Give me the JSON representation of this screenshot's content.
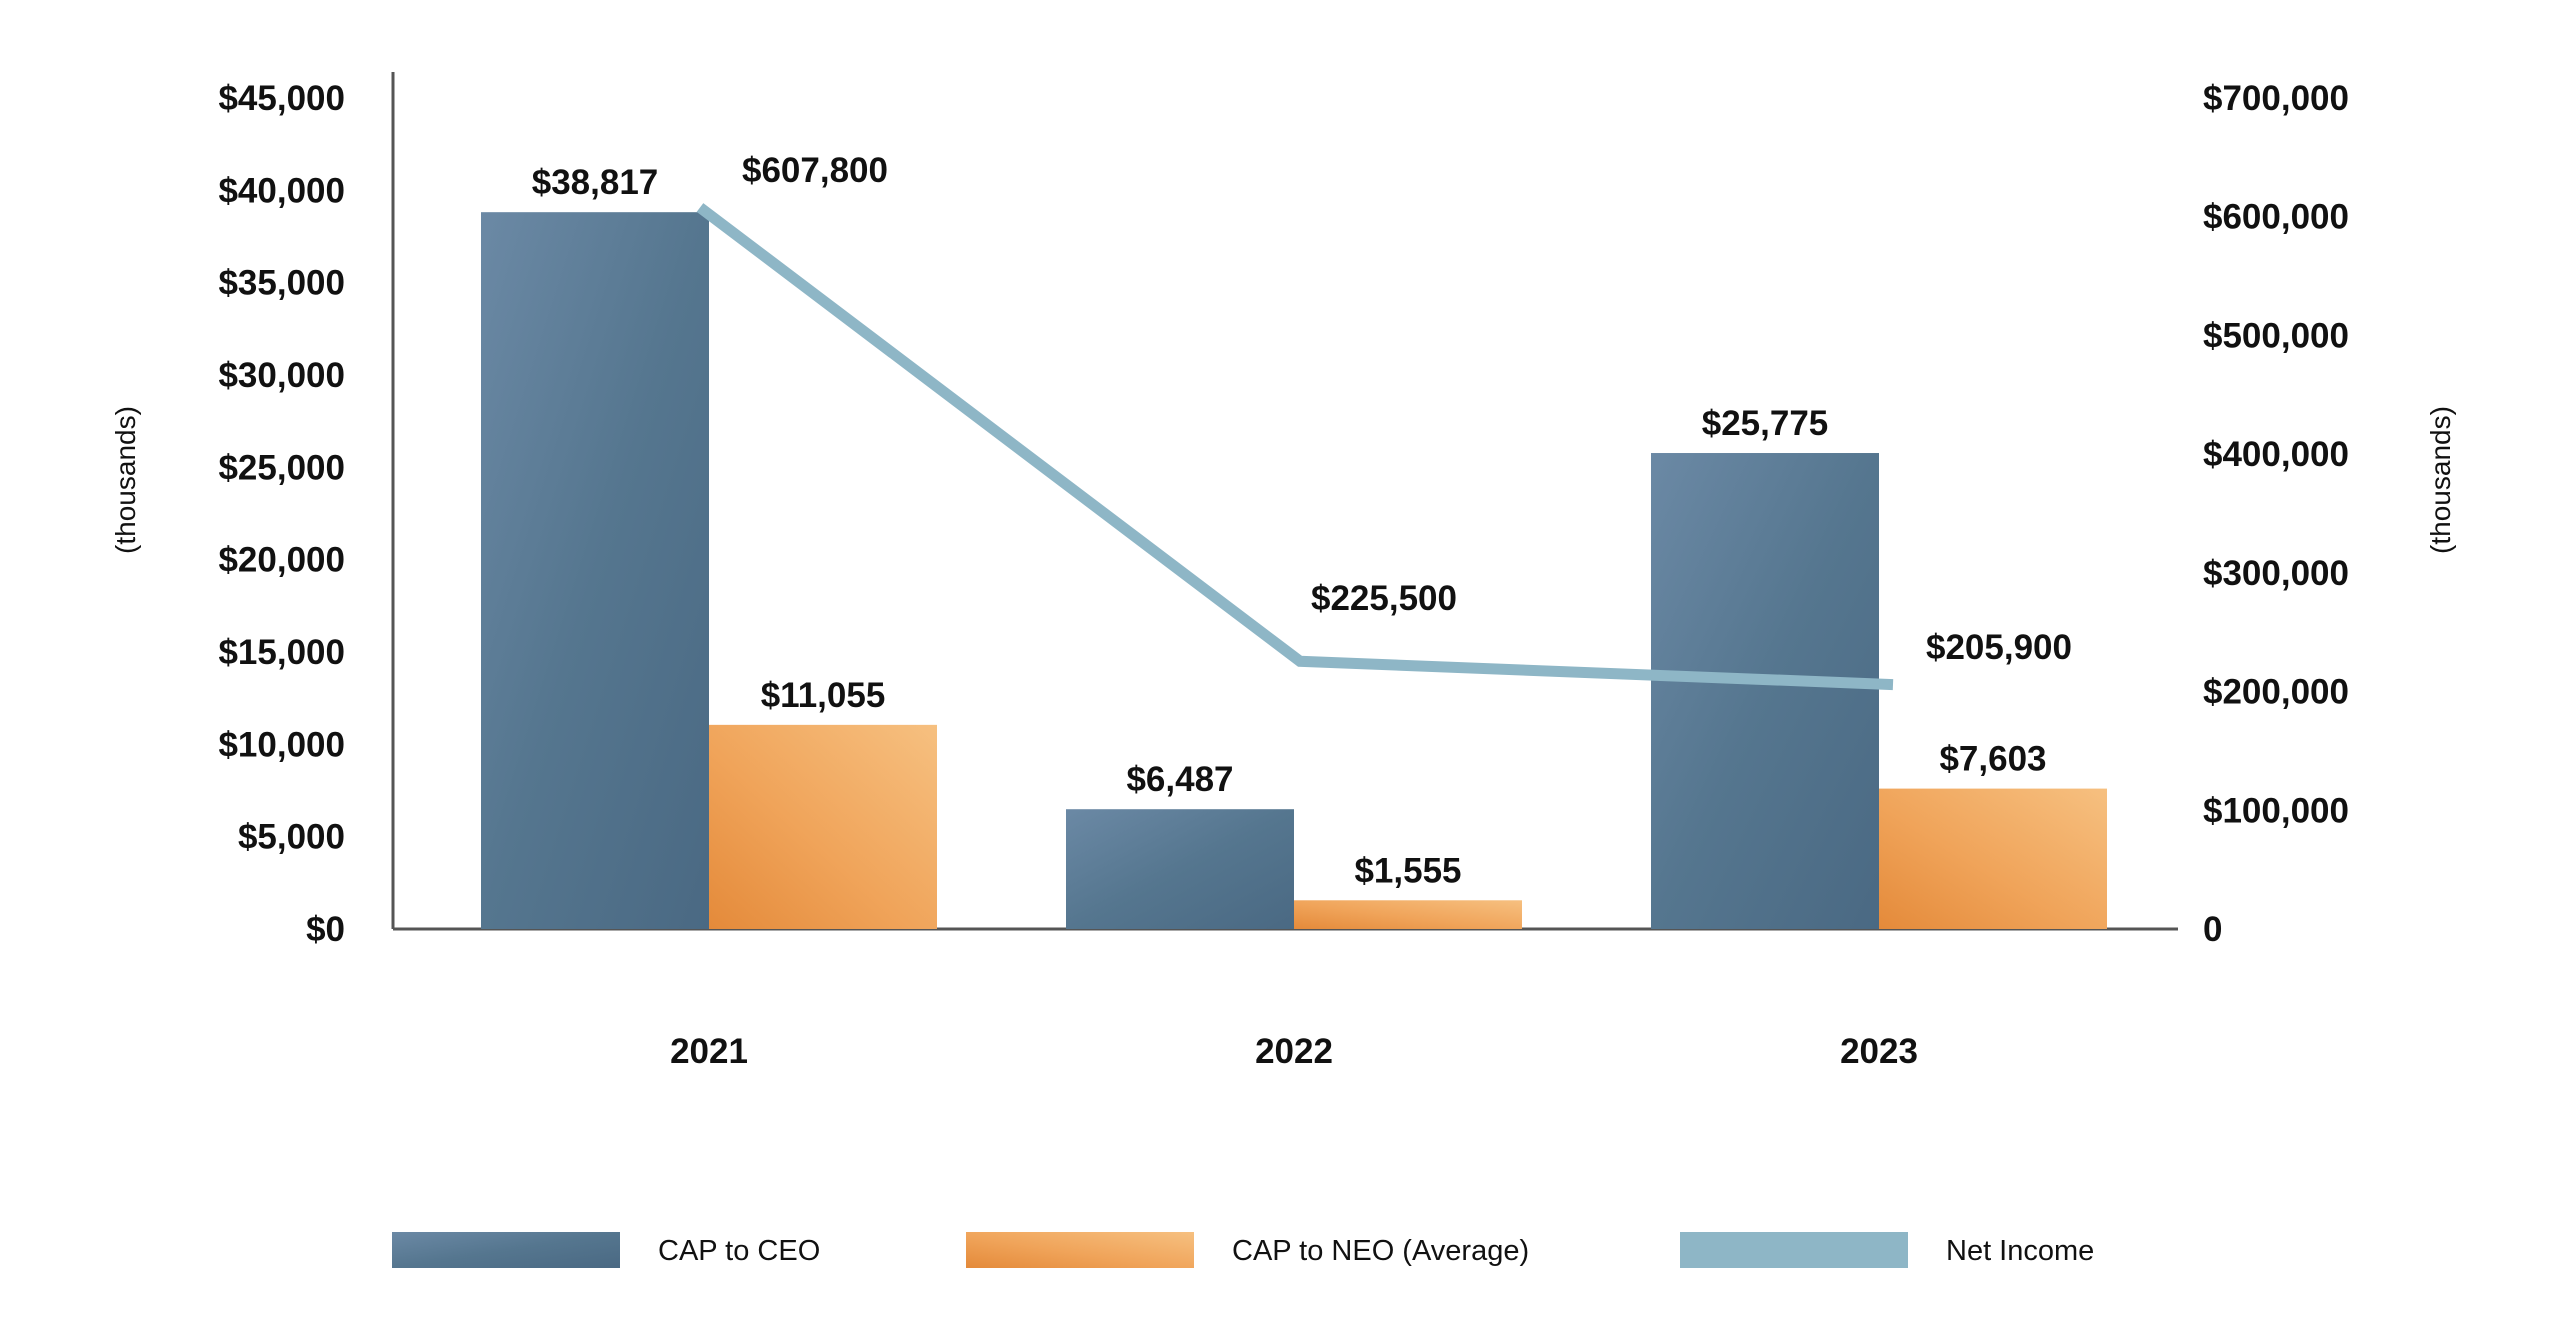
{
  "chart_data": {
    "type": "bar",
    "title": "",
    "categories": [
      "2021",
      "2022",
      "2023"
    ],
    "series": [
      {
        "name": "CAP to CEO",
        "kind": "bar",
        "axis": "left",
        "color": "#5d7f9d",
        "values": [
          38817,
          6487,
          25775
        ],
        "labels": [
          "$38,817",
          "$6,487",
          "$25,775"
        ]
      },
      {
        "name": "CAP to NEO (Average)",
        "kind": "bar",
        "axis": "left",
        "color": "#f0a55a",
        "values": [
          11055,
          1555,
          7603
        ],
        "labels": [
          "$11,055",
          "$1,555",
          "$7,603"
        ]
      },
      {
        "name": "Net Income",
        "kind": "line",
        "axis": "right",
        "color": "#8eb6c6",
        "values": [
          607800,
          225500,
          205900
        ],
        "labels": [
          "$607,800",
          "$225,500",
          "$205,900"
        ]
      }
    ],
    "left_axis": {
      "label": "(thousands)",
      "min": 0,
      "max": 45000,
      "ticks": [
        0,
        5000,
        10000,
        15000,
        20000,
        25000,
        30000,
        35000,
        40000,
        45000
      ],
      "tick_labels": [
        "$0",
        "$5,000",
        "$10,000",
        "$15,000",
        "$20,000",
        "$25,000",
        "$30,000",
        "$35,000",
        "$40,000",
        "$45,000"
      ]
    },
    "right_axis": {
      "label": "(thousands)",
      "min": 0,
      "max": 700000,
      "ticks": [
        0,
        100000,
        200000,
        300000,
        400000,
        500000,
        600000,
        700000
      ],
      "tick_labels": [
        "0",
        "$100,000",
        "$200,000",
        "$300,000",
        "$400,000",
        "$500,000",
        "$600,000",
        "$700,000"
      ]
    },
    "legend": {
      "position": "bottom",
      "items": [
        "CAP to CEO",
        "CAP to NEO (Average)",
        "Net Income"
      ]
    }
  }
}
